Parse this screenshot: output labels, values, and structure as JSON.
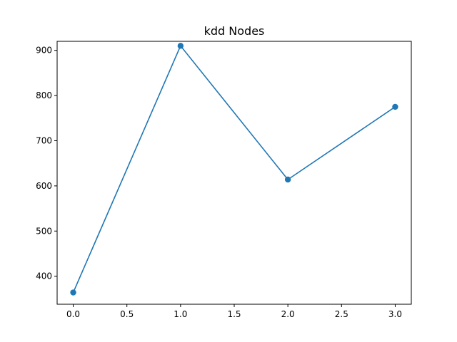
{
  "chart_data": {
    "type": "line",
    "title": "kdd Nodes",
    "xlabel": "",
    "ylabel": "",
    "x": [
      0,
      1,
      2,
      3
    ],
    "series": [
      {
        "values": [
          364,
          910,
          614,
          775
        ],
        "color": "#1f77b4",
        "marker": "circle"
      }
    ],
    "xlim": [
      -0.15,
      3.15
    ],
    "ylim": [
      338,
      920
    ],
    "xticks": [
      0.0,
      0.5,
      1.0,
      1.5,
      2.0,
      2.5,
      3.0
    ],
    "xtick_labels": [
      "0.0",
      "0.5",
      "1.0",
      "1.5",
      "2.0",
      "2.5",
      "3.0"
    ],
    "yticks": [
      400,
      500,
      600,
      700,
      800,
      900
    ],
    "ytick_labels": [
      "400",
      "500",
      "600",
      "700",
      "800",
      "900"
    ],
    "grid": false,
    "legend": "none"
  }
}
